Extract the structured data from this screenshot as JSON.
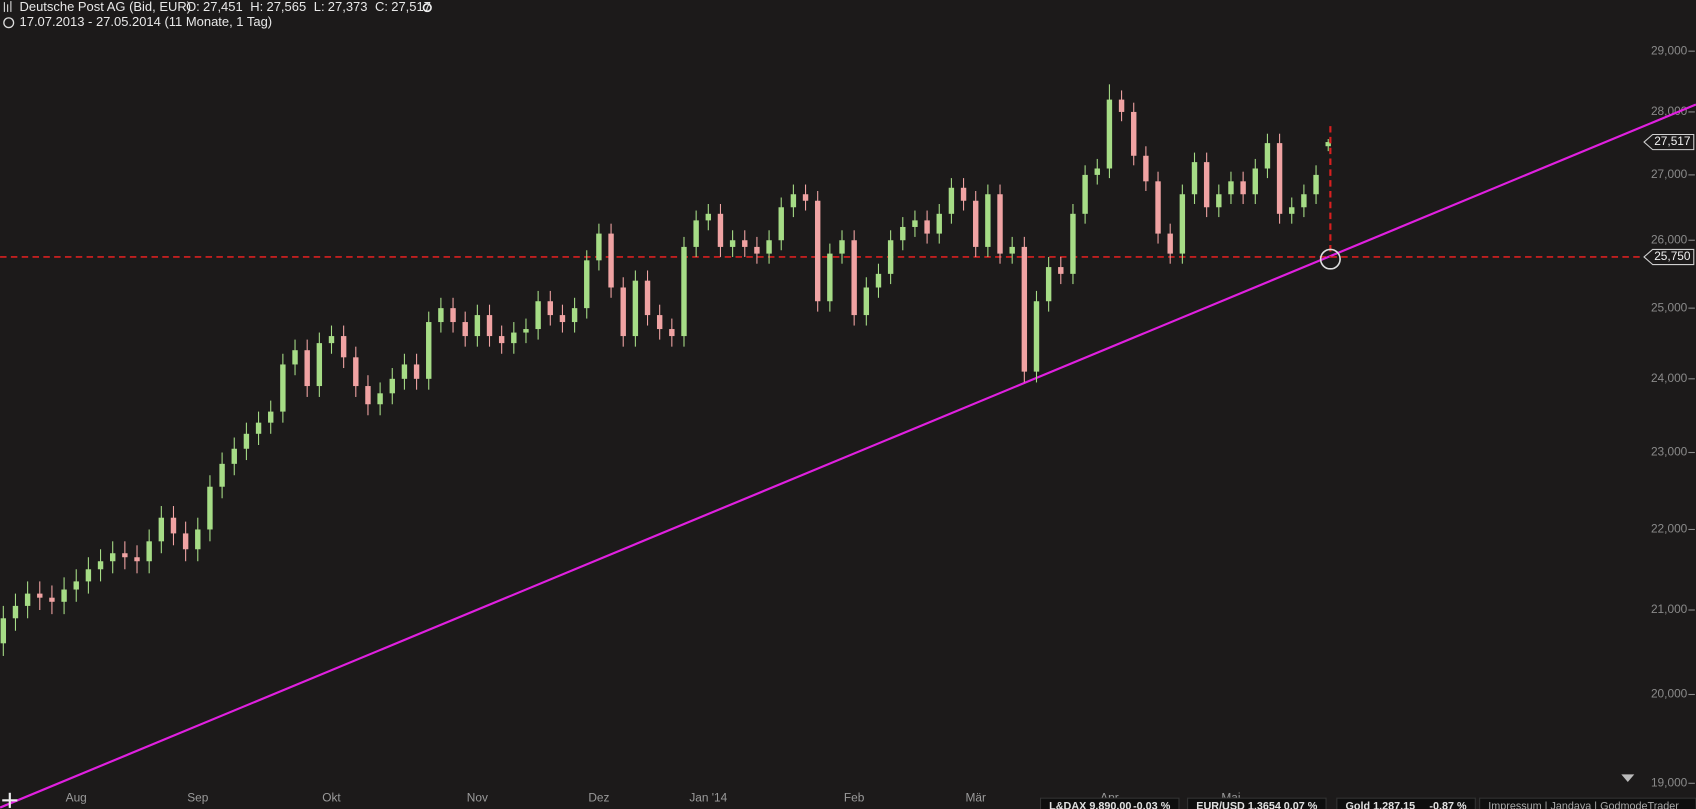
{
  "header": {
    "title": "Deutsche Post AG (Bid, EUR)",
    "ohlc": [
      {
        "label": "O:",
        "value": "27,451"
      },
      {
        "label": "H:",
        "value": "27,565"
      },
      {
        "label": "L:",
        "value": "27,373"
      },
      {
        "label": "C:",
        "value": "27,517"
      }
    ],
    "range": "17.07.2013 - 27.05.2014 (11 Monate, 1 Tag)"
  },
  "chart_data": {
    "type": "candlestick",
    "categories": [
      null,
      null,
      null,
      null,
      null,
      null,
      "Aug",
      null,
      null,
      null,
      null,
      null,
      null,
      null,
      null,
      null,
      "Sep",
      null,
      null,
      null,
      null,
      null,
      null,
      null,
      null,
      null,
      null,
      "Okt",
      null,
      null,
      null,
      null,
      null,
      null,
      null,
      null,
      null,
      null,
      null,
      "Nov",
      null,
      null,
      null,
      null,
      null,
      null,
      null,
      null,
      null,
      "Dez",
      null,
      null,
      null,
      null,
      null,
      null,
      null,
      null,
      "Jan '14",
      null,
      null,
      null,
      null,
      null,
      null,
      null,
      null,
      null,
      null,
      null,
      "Feb",
      null,
      null,
      null,
      null,
      null,
      null,
      null,
      null,
      null,
      "Mär",
      null,
      null,
      null,
      null,
      null,
      null,
      null,
      null,
      null,
      null,
      "Apr",
      null,
      null,
      null,
      null,
      null,
      null,
      null,
      null,
      null,
      "Mai",
      null,
      null,
      null,
      null,
      null,
      null,
      null,
      null
    ],
    "open": [
      20.6,
      20.9,
      21.05,
      21.2,
      21.15,
      21.1,
      21.25,
      21.35,
      21.5,
      21.6,
      21.7,
      21.65,
      21.6,
      21.85,
      22.15,
      21.95,
      21.75,
      22.0,
      22.55,
      22.85,
      23.05,
      23.25,
      23.4,
      23.55,
      24.2,
      24.4,
      23.9,
      24.5,
      24.6,
      24.3,
      23.9,
      23.65,
      23.8,
      24.0,
      24.2,
      24.0,
      24.8,
      25.0,
      24.8,
      24.6,
      24.9,
      24.6,
      24.5,
      24.65,
      24.7,
      25.1,
      24.9,
      24.8,
      25.0,
      25.7,
      26.1,
      25.3,
      24.6,
      25.4,
      24.9,
      24.7,
      24.6,
      25.9,
      26.3,
      26.4,
      25.9,
      26.0,
      25.9,
      25.8,
      26.0,
      26.5,
      26.7,
      26.6,
      25.1,
      25.8,
      26.0,
      24.9,
      25.3,
      25.5,
      26.0,
      26.2,
      26.3,
      26.1,
      26.4,
      26.8,
      26.6,
      25.9,
      26.7,
      25.8,
      25.9,
      24.1,
      25.1,
      25.6,
      25.5,
      26.4,
      27.0,
      27.1,
      28.2,
      28.0,
      27.3,
      26.9,
      26.1,
      25.8,
      26.7,
      27.2,
      26.5,
      26.7,
      26.9,
      26.7,
      27.1,
      27.5,
      26.4,
      26.5,
      26.7,
      27.451
    ],
    "high": [
      21.05,
      21.2,
      21.35,
      21.35,
      21.3,
      21.4,
      21.5,
      21.65,
      21.75,
      21.85,
      21.85,
      21.8,
      22.0,
      22.3,
      22.3,
      22.1,
      22.15,
      22.7,
      23.0,
      23.2,
      23.4,
      23.55,
      23.7,
      24.35,
      24.55,
      24.55,
      24.65,
      24.75,
      24.75,
      24.45,
      24.05,
      23.95,
      24.15,
      24.35,
      24.35,
      24.95,
      25.15,
      25.15,
      24.95,
      25.05,
      25.05,
      24.75,
      24.8,
      24.85,
      25.25,
      25.25,
      25.05,
      25.15,
      25.85,
      26.25,
      26.25,
      25.45,
      25.55,
      25.55,
      25.05,
      24.85,
      26.05,
      26.45,
      26.55,
      26.55,
      26.15,
      26.15,
      26.05,
      26.15,
      26.65,
      26.85,
      26.85,
      26.75,
      25.95,
      26.15,
      26.15,
      25.45,
      25.65,
      26.15,
      26.35,
      26.45,
      26.45,
      26.55,
      26.95,
      26.95,
      26.75,
      26.85,
      26.85,
      26.05,
      26.05,
      25.25,
      25.75,
      25.75,
      26.55,
      27.15,
      27.25,
      28.45,
      28.35,
      28.15,
      27.45,
      27.05,
      26.25,
      26.85,
      27.35,
      27.35,
      26.85,
      27.05,
      27.05,
      27.25,
      27.65,
      27.65,
      26.65,
      26.85,
      27.15,
      27.565
    ],
    "low": [
      20.45,
      20.75,
      20.9,
      21.0,
      20.95,
      20.95,
      21.1,
      21.2,
      21.35,
      21.45,
      21.5,
      21.45,
      21.45,
      21.7,
      21.8,
      21.6,
      21.6,
      21.85,
      22.4,
      22.7,
      22.9,
      23.1,
      23.25,
      23.4,
      24.05,
      23.75,
      23.75,
      24.35,
      24.15,
      23.75,
      23.5,
      23.5,
      23.65,
      23.85,
      23.85,
      23.85,
      24.65,
      24.65,
      24.45,
      24.45,
      24.45,
      24.35,
      24.35,
      24.5,
      24.55,
      24.75,
      24.65,
      24.65,
      24.85,
      25.55,
      25.15,
      24.45,
      24.45,
      24.75,
      24.55,
      24.45,
      24.45,
      25.75,
      26.15,
      25.75,
      25.75,
      25.75,
      25.65,
      25.65,
      25.85,
      26.35,
      26.45,
      24.95,
      24.95,
      25.65,
      24.75,
      24.75,
      25.15,
      25.35,
      25.85,
      26.05,
      25.95,
      25.95,
      26.25,
      26.45,
      25.75,
      25.75,
      25.65,
      25.65,
      23.95,
      23.95,
      24.95,
      25.35,
      25.35,
      26.25,
      26.85,
      26.95,
      27.85,
      27.15,
      26.75,
      25.95,
      25.65,
      25.65,
      26.55,
      26.35,
      26.35,
      26.55,
      26.55,
      26.55,
      26.95,
      26.25,
      26.25,
      26.35,
      26.55,
      27.373
    ],
    "close": [
      20.9,
      21.05,
      21.2,
      21.15,
      21.1,
      21.25,
      21.35,
      21.5,
      21.6,
      21.7,
      21.65,
      21.6,
      21.85,
      22.15,
      21.95,
      21.75,
      22.0,
      22.55,
      22.85,
      23.05,
      23.25,
      23.4,
      23.55,
      24.2,
      24.4,
      23.9,
      24.5,
      24.6,
      24.3,
      23.9,
      23.65,
      23.8,
      24.0,
      24.2,
      24.0,
      24.8,
      25.0,
      24.8,
      24.6,
      24.9,
      24.6,
      24.5,
      24.65,
      24.7,
      25.1,
      24.9,
      24.8,
      25.0,
      25.7,
      26.1,
      25.3,
      24.6,
      25.4,
      24.9,
      24.7,
      24.6,
      25.9,
      26.3,
      26.4,
      25.9,
      26.0,
      25.9,
      25.8,
      26.0,
      26.5,
      26.7,
      26.6,
      25.1,
      25.8,
      26.0,
      24.9,
      25.3,
      25.5,
      26.0,
      26.2,
      26.3,
      26.1,
      26.4,
      26.8,
      26.6,
      25.9,
      26.7,
      25.8,
      25.9,
      24.1,
      25.1,
      25.6,
      25.5,
      26.4,
      27.0,
      27.1,
      28.2,
      28.0,
      27.3,
      26.9,
      26.1,
      25.8,
      26.7,
      27.2,
      26.5,
      26.7,
      26.9,
      26.7,
      27.1,
      27.5,
      26.4,
      26.5,
      26.7,
      27.0,
      27.517
    ],
    "up_color": "#a6dc86",
    "down_color": "#f0a3a3",
    "log_scale": true,
    "ylim": [
      18.72,
      29.87
    ],
    "yticks": [
      {
        "value": 19,
        "label": "19,000"
      },
      {
        "value": 20,
        "label": "20,000"
      },
      {
        "value": 21,
        "label": "21,000"
      },
      {
        "value": 22,
        "label": "22,000"
      },
      {
        "value": 23,
        "label": "23,000"
      },
      {
        "value": 24,
        "label": "24,000"
      },
      {
        "value": 25,
        "label": "25,000"
      },
      {
        "value": 26,
        "label": "26,000"
      },
      {
        "value": 27,
        "label": "27,000"
      },
      {
        "value": 28,
        "label": "28,000"
      },
      {
        "value": 29,
        "label": "29,000"
      }
    ],
    "last_price": {
      "value": 27.517,
      "label": "27,517"
    },
    "level": {
      "value": 25.75,
      "label": "25,750",
      "color": "#d82020"
    },
    "trendline": {
      "start": 18.75,
      "end": 25.75,
      "color": "#e020e0"
    }
  },
  "ticker": [
    {
      "name": "L&DAX 9.890,00",
      "change": "-0,03 %",
      "color": "#f07070"
    },
    {
      "name": "EUR/USD 1,3654",
      "change": "0,07 %",
      "color": "#8fd070"
    },
    {
      "name": "Gold 1.287,15",
      "change": "-0,87 %",
      "color": "#f07070"
    }
  ],
  "links": "Impressum | Jandaya | GodmodeTrader"
}
